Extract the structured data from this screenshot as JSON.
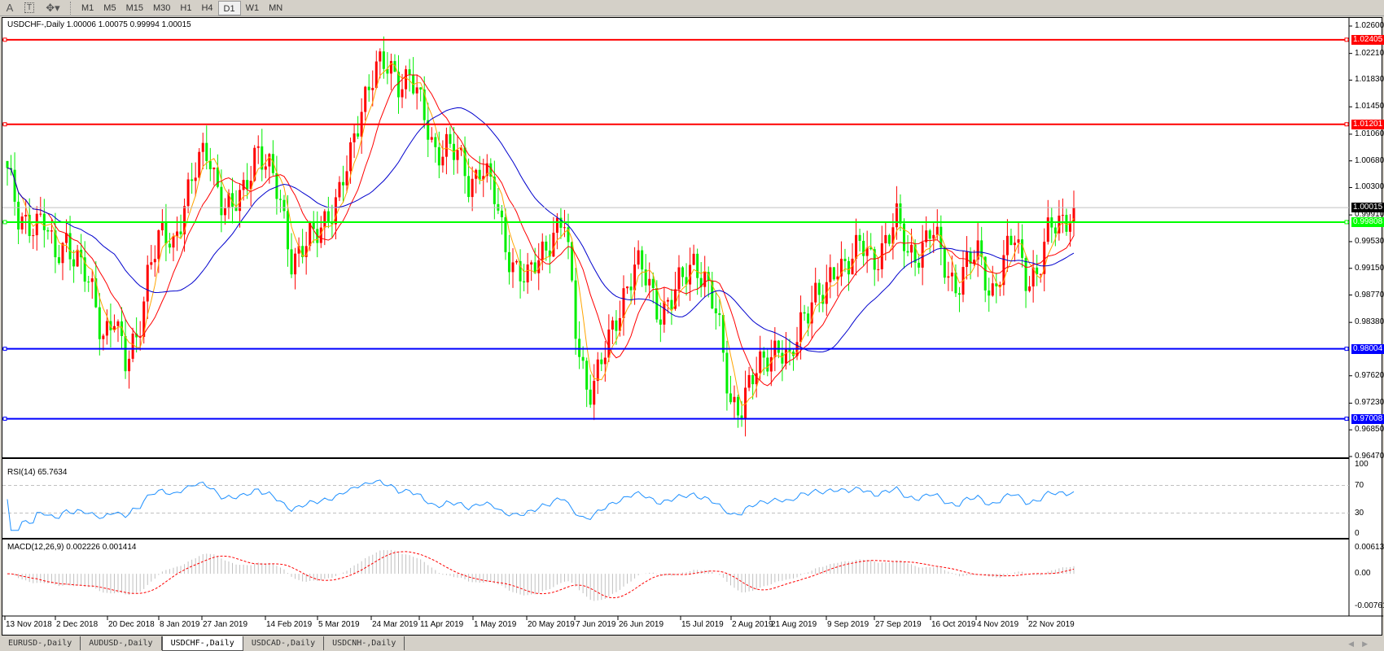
{
  "toolbar": {
    "icons": [
      "text-A-icon",
      "text-label-icon",
      "arrows-tool-icon"
    ],
    "text_icon": "A",
    "label_icon": "T",
    "timeframes": [
      "M1",
      "M5",
      "M15",
      "M30",
      "H1",
      "H4",
      "D1",
      "W1",
      "MN"
    ],
    "active_timeframe": "D1"
  },
  "chart": {
    "info": "USDCHF-,Daily  1.00006 1.00075 0.99994 1.00015",
    "rsi_label": "RSI(14) 65.7634",
    "macd_label": "MACD(12,26,9) 0.002226 0.001414"
  },
  "colors": {
    "bull": "#ff0000",
    "bear": "#00ee00",
    "ma_fast": "#ffa500",
    "ma_mid": "#ff0000",
    "ma_slow": "#0000cd",
    "rsi": "#1e90ff",
    "macd_signal": "#ff0000",
    "macd_hist": "#c0c0c0"
  },
  "tabs": [
    "EURUSD-,Daily",
    "AUDUSD-,Daily",
    "USDCHF-,Daily",
    "USDCAD-,Daily",
    "USDCNH-,Daily"
  ],
  "active_tab": 2,
  "chart_data": {
    "type": "candlestick",
    "symbol": "USDCHF-",
    "timeframe": "Daily",
    "last_ohlc": {
      "open": 1.00006,
      "high": 1.00075,
      "low": 0.99994,
      "close": 1.00015
    },
    "price_ticks": [
      "1.02600",
      "1.02210",
      "1.01830",
      "1.01450",
      "1.01060",
      "1.00680",
      "1.00300",
      "0.99910",
      "0.99530",
      "0.99150",
      "0.98770",
      "0.98380",
      "0.97620",
      "0.97230",
      "0.96850",
      "0.96470"
    ],
    "ylim": [
      0.9647,
      1.026
    ],
    "x_ticks": [
      "13 Nov 2018",
      "2 Dec 2018",
      "20 Dec 2018",
      "8 Jan 2019",
      "27 Jan 2019",
      "14 Feb 2019",
      "5 Mar 2019",
      "24 Mar 2019",
      "11 Apr 2019",
      "1 May 2019",
      "20 May 2019",
      "7 Jun 2019",
      "26 Jun 2019",
      "15 Jul 2019",
      "2 Aug 2019",
      "21 Aug 2019",
      "9 Sep 2019",
      "27 Sep 2019",
      "16 Oct 2019",
      "4 Nov 2019",
      "22 Nov 2019"
    ],
    "approx_closes": [
      1.00578,
      0.99698,
      0.99824,
      0.9995,
      0.99196,
      0.99573,
      0.99322,
      0.98819,
      0.98191,
      0.98568,
      0.97689,
      0.98191,
      0.99322,
      0.99573,
      0.99447,
      1.00201,
      1.00578,
      1.00766,
      1.00201,
      0.9995,
      1.00201,
      1.00955,
      1.00578,
      1.00075,
      0.99322,
      0.99447,
      0.99573,
      0.9995,
      1.00201,
      1.00703,
      1.01583,
      1.02022,
      1.01959,
      1.01834,
      1.01959,
      1.01331,
      1.00829,
      1.00955,
      1.00703,
      1.00326,
      1.00703,
      1.00201,
      0.99447,
      0.99196,
      0.98945,
      0.99322,
      0.99698,
      0.99824,
      0.98191,
      0.97437,
      0.97689,
      0.98191,
      0.98819,
      0.99196,
      0.98945,
      0.98568,
      0.98694,
      0.98945,
      0.99322,
      0.98945,
      0.98317,
      0.97312,
      0.97186,
      0.97563,
      0.9794,
      0.98065,
      0.97689,
      0.98442,
      0.98819,
      0.98694,
      0.99196,
      0.99322,
      0.99447,
      0.99196,
      0.99573,
      0.99824,
      0.99322,
      0.99447,
      0.99698,
      0.99196,
      0.98945,
      0.99196,
      0.99322,
      0.98819,
      0.99196,
      0.99573,
      0.9907,
      0.9907,
      0.99698,
      0.99887,
      1.00015
    ],
    "horizontal_lines": [
      {
        "price": 1.02405,
        "label": "1.02405",
        "color": "#ff0000"
      },
      {
        "price": 1.01201,
        "label": "1.01201",
        "color": "#ff0000"
      },
      {
        "price": 0.99808,
        "label": "0.99808",
        "color": "#00ff00"
      },
      {
        "price": 0.98004,
        "label": "0.98004",
        "color": "#0000ff"
      },
      {
        "price": 0.97008,
        "label": "0.97008",
        "color": "#0000ff"
      }
    ],
    "current_price": {
      "price": 1.00015,
      "label": "1.00015"
    },
    "indicators": {
      "rsi": {
        "period": 14,
        "value": 65.7634,
        "ticks": [
          "100",
          "70",
          "30",
          "0"
        ],
        "levels": [
          70,
          30
        ]
      },
      "macd": {
        "params": "12,26,9",
        "main": 0.002226,
        "signal": 0.001414,
        "ticks": [
          "0.00613",
          "0.00",
          "-0.007612"
        ],
        "ylim": [
          -0.007612,
          0.00613
        ]
      }
    }
  }
}
